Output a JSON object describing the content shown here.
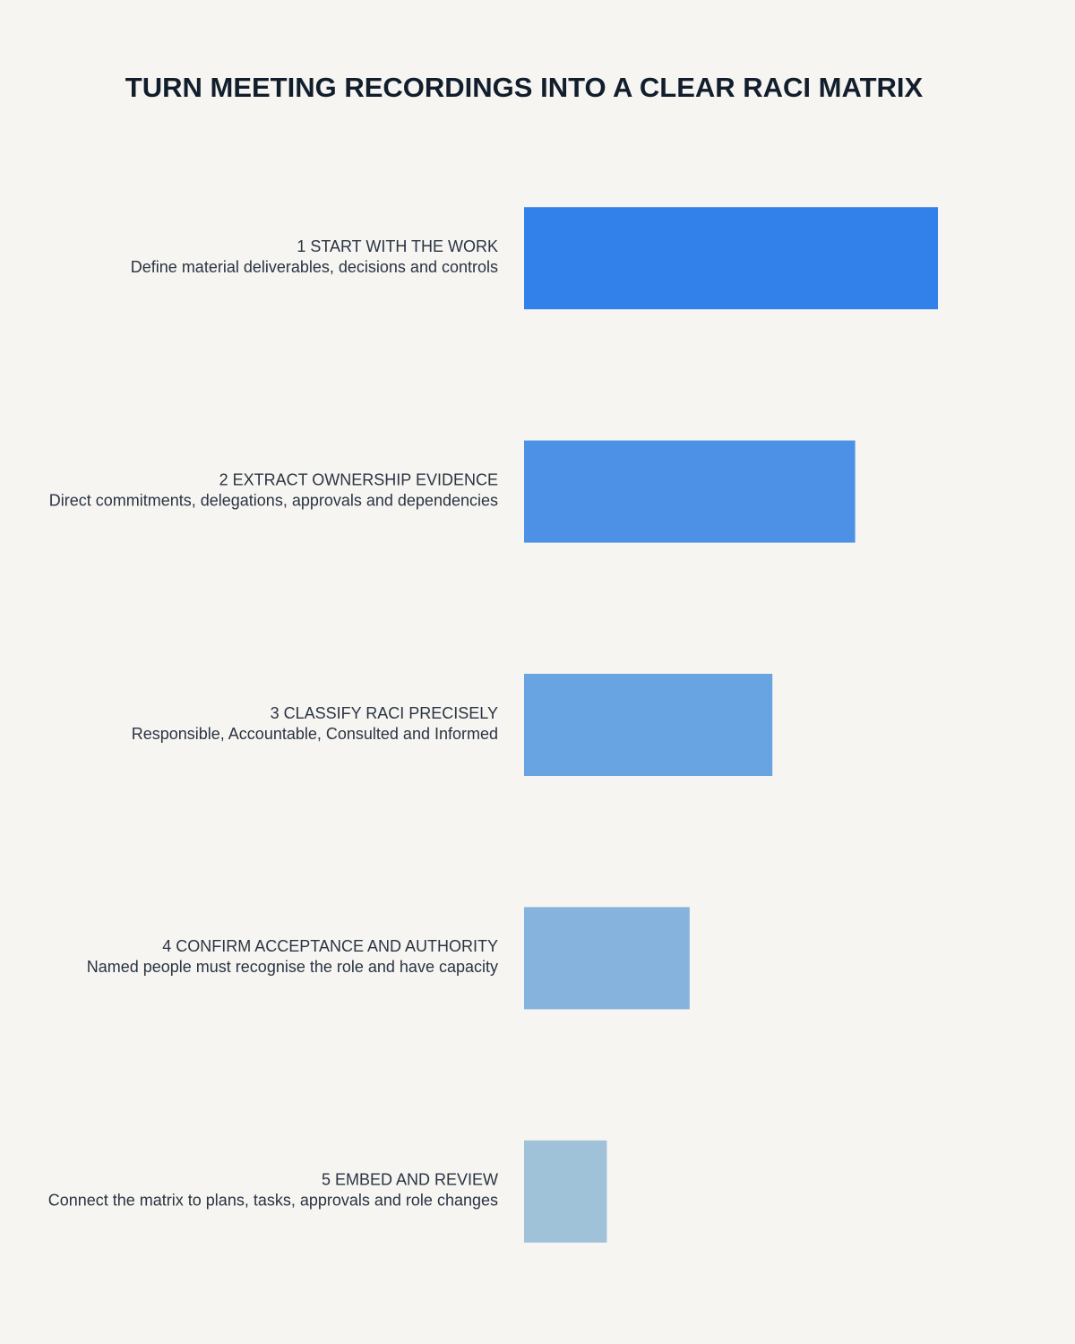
{
  "chart_data": {
    "type": "bar",
    "orientation": "horizontal",
    "title": "TURN MEETING RECORDINGS INTO A CLEAR RACI MATRIX",
    "categories": [
      "1 START WITH THE WORK",
      "2 EXTRACT OWNERSHIP EVIDENCE",
      "3 CLASSIFY RACI PRECISELY",
      "4 CONFIRM ACCEPTANCE AND AUTHORITY",
      "5 EMBED AND REVIEW"
    ],
    "descriptions": [
      "Define material deliverables, decisions and controls",
      "Direct commitments, delegations, approvals and dependencies",
      "Responsible, Accountable, Consulted and Informed",
      "Named people must recognise the role and have capacity",
      "Connect the matrix to plans, tasks, approvals and role changes"
    ],
    "values": [
      5,
      4,
      3,
      2,
      1
    ],
    "colors": [
      "#3281eb",
      "#4d91e6",
      "#68a3e2",
      "#86b2de",
      "#a0c2d8"
    ]
  }
}
